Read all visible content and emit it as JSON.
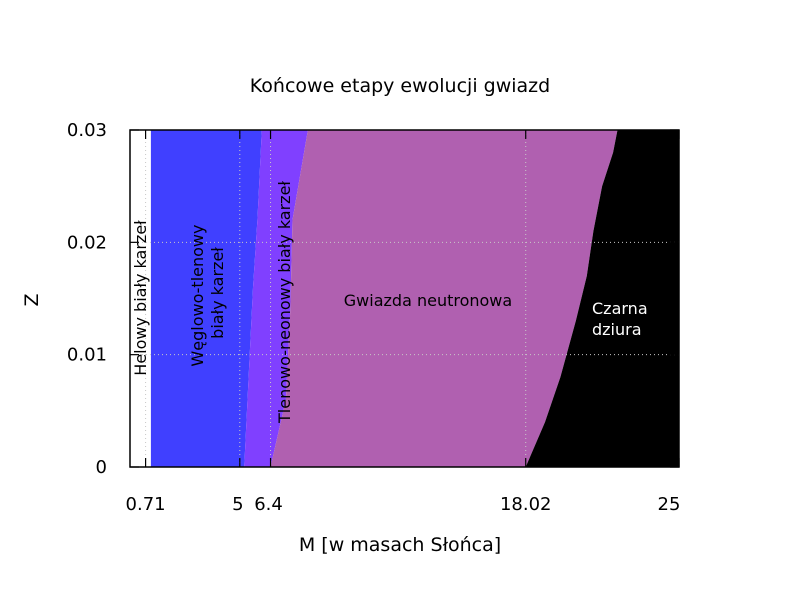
{
  "chart_data": {
    "type": "area",
    "title": "Końcowe etapy ewolucji gwiazd",
    "xlabel": "M [w masach Słońca]",
    "ylabel": "Z",
    "xlim": [
      0,
      25
    ],
    "ylim": [
      0,
      0.03
    ],
    "x_ticks": [
      {
        "value": 0.71,
        "label": "0.71"
      },
      {
        "value": 5,
        "label": "5"
      },
      {
        "value": 6.4,
        "label": "6.4"
      },
      {
        "value": 18.02,
        "label": "18.02"
      },
      {
        "value": 25,
        "label": "25"
      }
    ],
    "y_ticks": [
      {
        "value": 0,
        "label": "0"
      },
      {
        "value": 0.01,
        "label": "0.01"
      },
      {
        "value": 0.02,
        "label": "0.02"
      },
      {
        "value": 0.03,
        "label": "0.03"
      }
    ],
    "grid": true,
    "regions": [
      {
        "name": "helium-white-dwarf",
        "label": "Helowy biały karzeł",
        "color": "#ffffff",
        "boundary": [
          [
            0.95,
            0
          ],
          [
            0.95,
            0.03
          ]
        ]
      },
      {
        "name": "co-white-dwarf",
        "label": "Węglowo-tlenowy biały karzeł",
        "color": "#4040ff",
        "boundary": [
          [
            5.2,
            0
          ],
          [
            5.4,
            0.008
          ],
          [
            5.6,
            0.016
          ],
          [
            5.8,
            0.022
          ],
          [
            6.0,
            0.03
          ]
        ]
      },
      {
        "name": "one-white-dwarf",
        "label": "Tlenowo-neonowy biały karzeł",
        "color": "#8040ff",
        "boundary": [
          [
            6.4,
            0
          ],
          [
            7.1,
            0.006
          ],
          [
            7.3,
            0.014
          ],
          [
            7.4,
            0.022
          ],
          [
            8.1,
            0.03
          ]
        ]
      },
      {
        "name": "neutron-star",
        "label": "Gwiazda neutronowa",
        "color": "#b060b0",
        "boundary": [
          [
            18.02,
            0
          ],
          [
            18.9,
            0.004
          ],
          [
            19.6,
            0.008
          ],
          [
            20.3,
            0.013
          ],
          [
            20.8,
            0.017
          ],
          [
            21.1,
            0.021
          ],
          [
            21.5,
            0.025
          ],
          [
            22.0,
            0.028
          ],
          [
            22.2,
            0.03
          ]
        ]
      },
      {
        "name": "black-hole",
        "label": "Czarna dziura",
        "label_lines": [
          "Czarna",
          "dziura"
        ],
        "color": "#000000",
        "boundary": [
          [
            25,
            0
          ],
          [
            25,
            0.03
          ]
        ]
      }
    ]
  }
}
